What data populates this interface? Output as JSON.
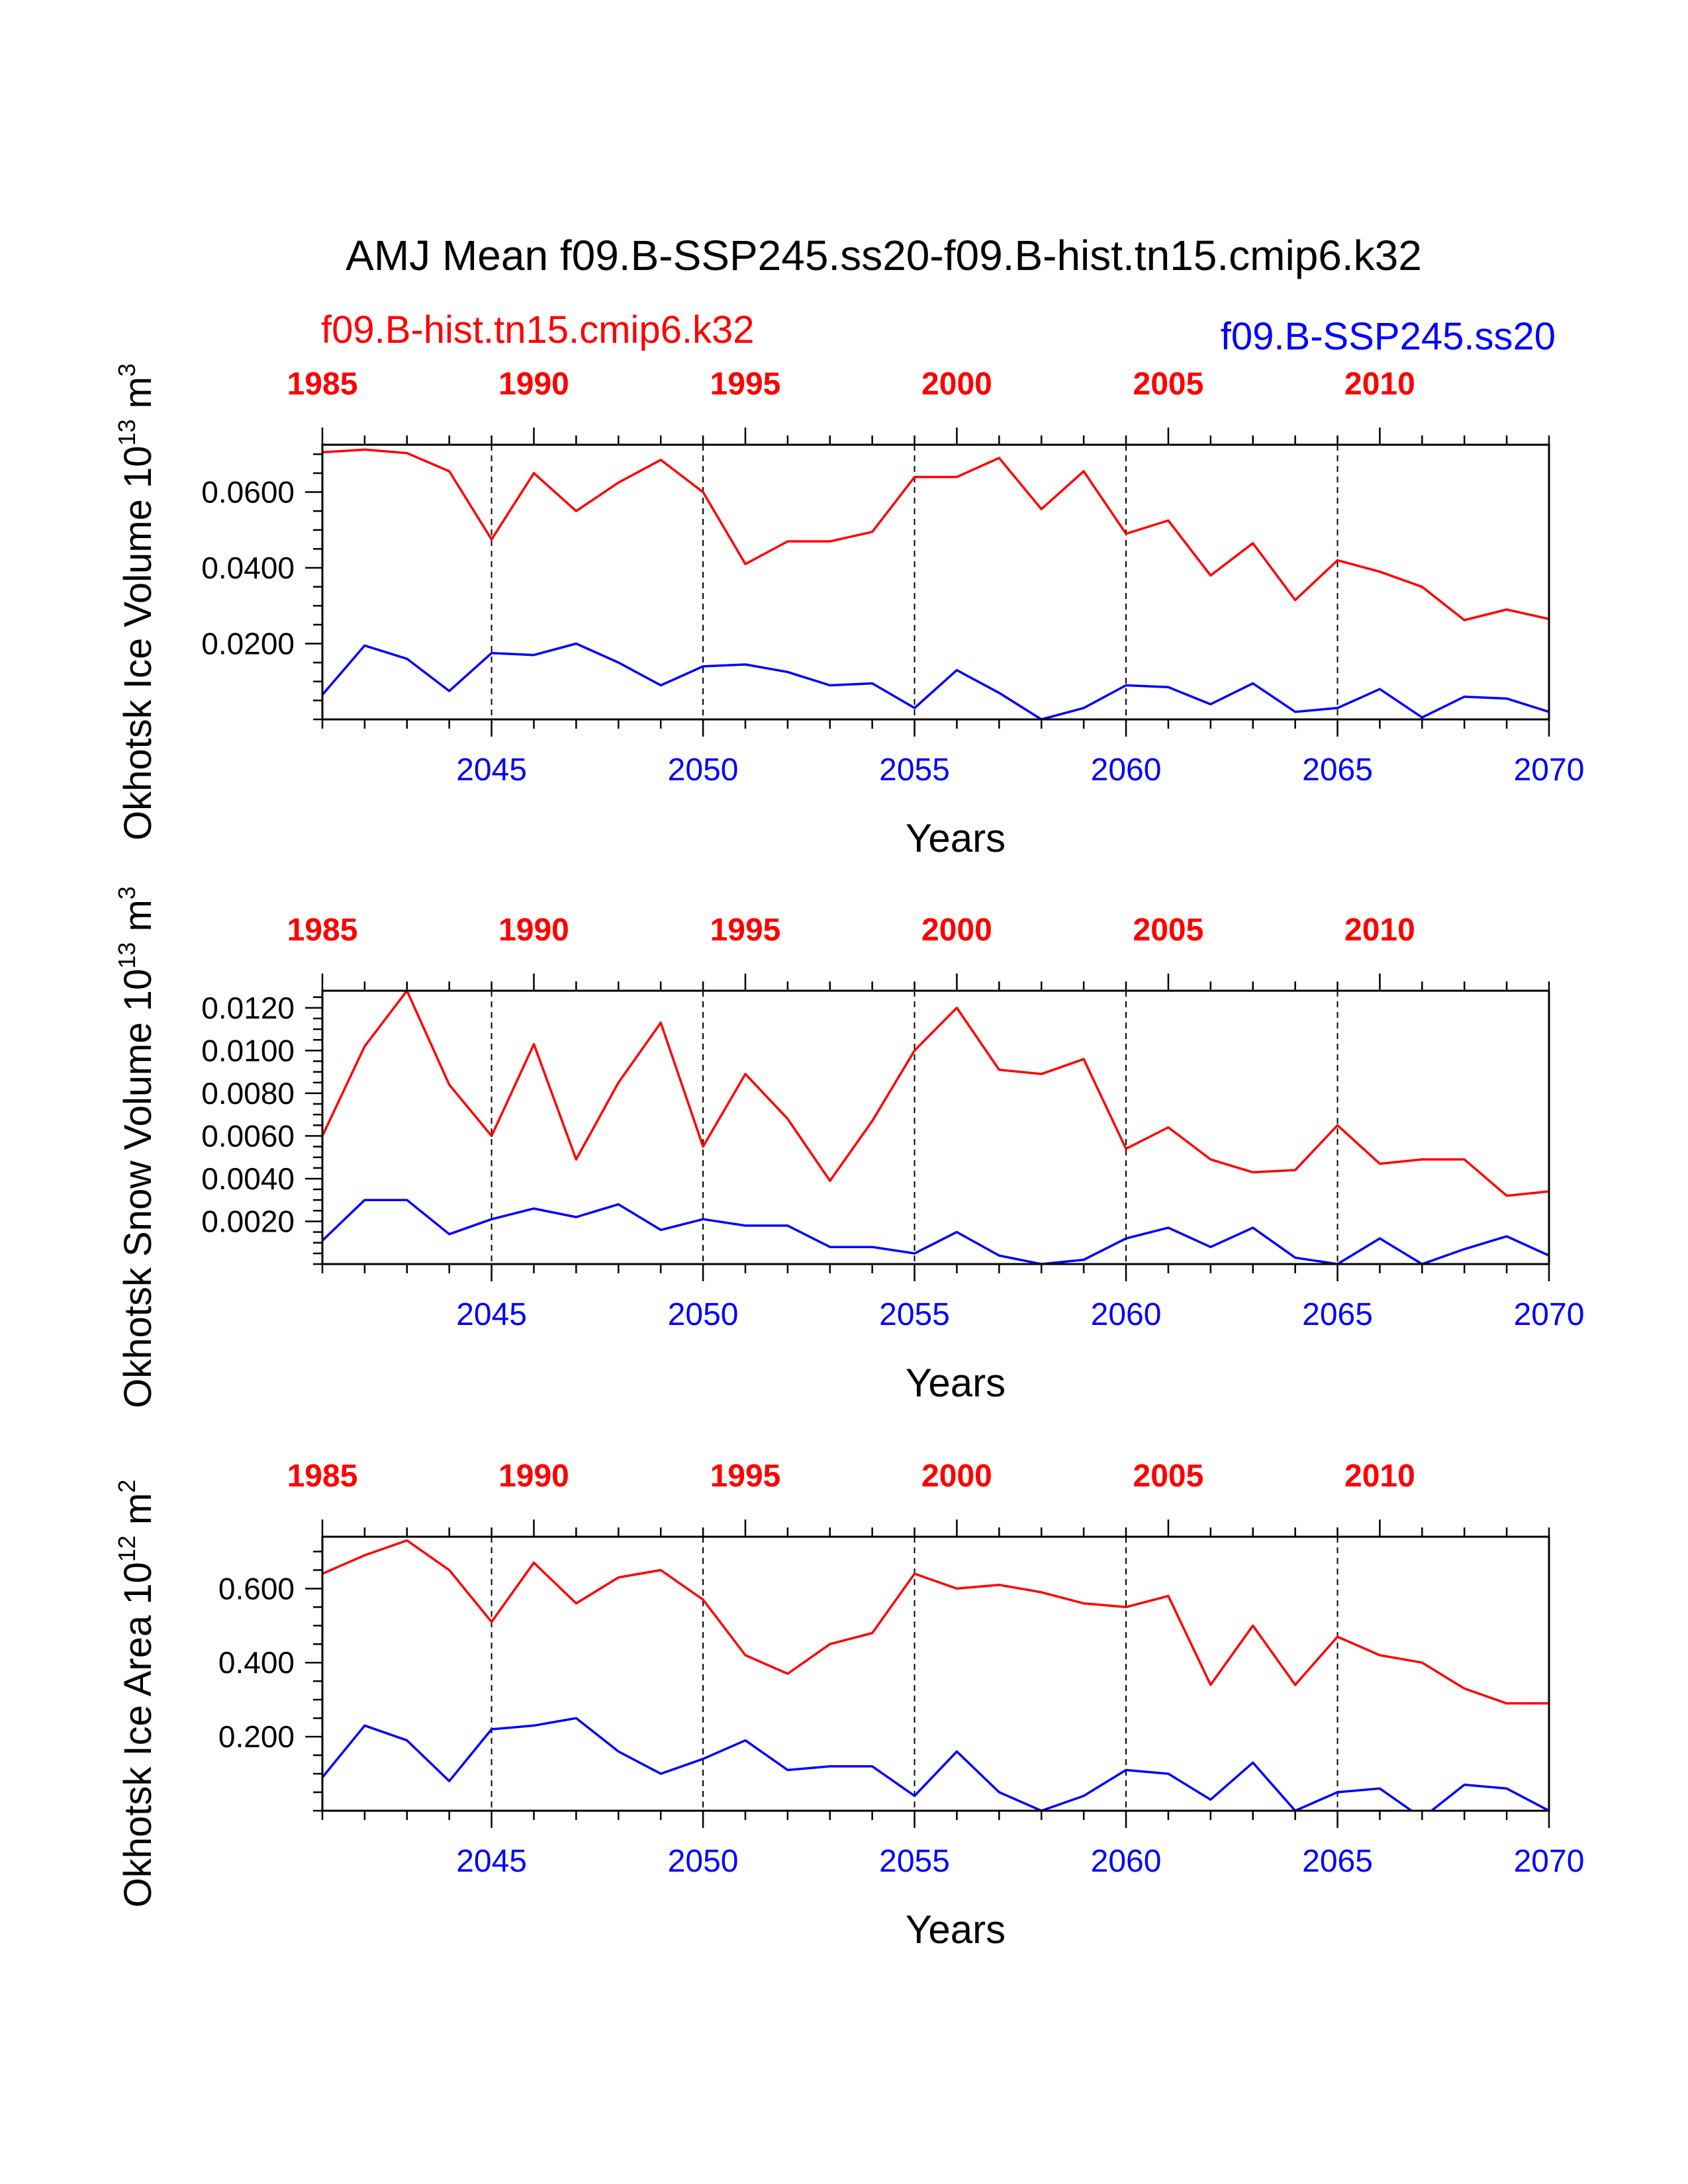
{
  "page": {
    "title": "AMJ Mean f09.B-SSP245.ss20-f09.B-hist.tn15.cmip6.k32",
    "legend_red": "f09.B-hist.tn15.cmip6.k32",
    "legend_blue": "f09.B-SSP245.ss20"
  },
  "colors": {
    "hist": "#ff0000",
    "ssp": "#0000ff",
    "axis": "#000000"
  },
  "chart_data": [
    {
      "type": "line",
      "ylabel_main": "Okhotsk Ice Volume 10",
      "ylabel_exp": "13",
      "ylabel_unit": " m",
      "ylabel_unit_exp": "3",
      "xlabel": "Years",
      "ylim": [
        0.0,
        0.0725
      ],
      "yticks": [
        0.02,
        0.04,
        0.06
      ],
      "ytick_labels": [
        "0.0200",
        "0.0400",
        "0.0600"
      ],
      "y_minor_step": 0.005,
      "x_bottom": {
        "range": [
          2041,
          2070
        ],
        "ticks": [
          2045,
          2050,
          2055,
          2060,
          2065,
          2070
        ],
        "labels": [
          "2045",
          "2050",
          "2055",
          "2060",
          "2065",
          "2070"
        ]
      },
      "x_top": {
        "range": [
          1985,
          2014
        ],
        "ticks": [
          1985,
          1990,
          1995,
          2000,
          2005,
          2010
        ],
        "labels": [
          "1985",
          "1990",
          "1995",
          "2000",
          "2005",
          "2010"
        ]
      },
      "vlines": [
        2045,
        2050,
        2055,
        2060,
        2065
      ],
      "series": [
        {
          "name": "f09.B-hist.tn15.cmip6.k32",
          "color": "#ff0000",
          "x": [
            1985,
            1986,
            1987,
            1988,
            1989,
            1990,
            1991,
            1992,
            1993,
            1994,
            1995,
            1996,
            1997,
            1998,
            1999,
            2000,
            2001,
            2002,
            2003,
            2004,
            2005,
            2006,
            2007,
            2008,
            2009,
            2010,
            2011,
            2012,
            2013,
            2014
          ],
          "values": [
            0.0705,
            0.0712,
            0.0703,
            0.0655,
            0.0475,
            0.065,
            0.055,
            0.0625,
            0.0685,
            0.06,
            0.041,
            0.047,
            0.047,
            0.0495,
            0.064,
            0.064,
            0.069,
            0.0555,
            0.0655,
            0.049,
            0.0525,
            0.038,
            0.0465,
            0.0315,
            0.042,
            0.039,
            0.035,
            0.0262,
            0.029,
            0.0265
          ]
        },
        {
          "name": "f09.B-SSP245.ss20",
          "color": "#0000ff",
          "x": [
            2041,
            2042,
            2043,
            2044,
            2045,
            2046,
            2047,
            2048,
            2049,
            2050,
            2051,
            2052,
            2053,
            2054,
            2055,
            2056,
            2057,
            2058,
            2059,
            2060,
            2061,
            2062,
            2063,
            2064,
            2065,
            2066,
            2067,
            2068,
            2069,
            2070
          ],
          "values": [
            0.0065,
            0.0195,
            0.016,
            0.0075,
            0.0175,
            0.017,
            0.02,
            0.015,
            0.009,
            0.014,
            0.0145,
            0.0125,
            0.009,
            0.0095,
            0.003,
            0.013,
            0.007,
            0.0,
            0.003,
            0.009,
            0.0085,
            0.004,
            0.0095,
            0.002,
            0.003,
            0.008,
            0.0005,
            0.006,
            0.0055,
            0.002
          ]
        }
      ]
    },
    {
      "type": "line",
      "ylabel_main": "Okhotsk Snow Volume 10",
      "ylabel_exp": "13",
      "ylabel_unit": " m",
      "ylabel_unit_exp": "3",
      "xlabel": "Years",
      "ylim": [
        0.0,
        0.0128
      ],
      "yticks": [
        0.002,
        0.004,
        0.006,
        0.008,
        0.01,
        0.012
      ],
      "ytick_labels": [
        "0.0020",
        "0.0040",
        "0.0060",
        "0.0080",
        "0.0100",
        "0.0120"
      ],
      "y_minor_step": 0.0005,
      "x_bottom": {
        "range": [
          2041,
          2070
        ],
        "ticks": [
          2045,
          2050,
          2055,
          2060,
          2065,
          2070
        ],
        "labels": [
          "2045",
          "2050",
          "2055",
          "2060",
          "2065",
          "2070"
        ]
      },
      "x_top": {
        "range": [
          1985,
          2014
        ],
        "ticks": [
          1985,
          1990,
          1995,
          2000,
          2005,
          2010
        ],
        "labels": [
          "1985",
          "1990",
          "1995",
          "2000",
          "2005",
          "2010"
        ]
      },
      "vlines": [
        2045,
        2050,
        2055,
        2060,
        2065
      ],
      "series": [
        {
          "name": "f09.B-hist.tn15.cmip6.k32",
          "color": "#ff0000",
          "x": [
            1985,
            1986,
            1987,
            1988,
            1989,
            1990,
            1991,
            1992,
            1993,
            1994,
            1995,
            1996,
            1997,
            1998,
            1999,
            2000,
            2001,
            2002,
            2003,
            2004,
            2005,
            2006,
            2007,
            2008,
            2009,
            2010,
            2011,
            2012,
            2013,
            2014
          ],
          "values": [
            0.006,
            0.0102,
            0.0128,
            0.0084,
            0.006,
            0.0103,
            0.0049,
            0.0085,
            0.0113,
            0.0055,
            0.0089,
            0.0068,
            0.0039,
            0.0067,
            0.01,
            0.012,
            0.0091,
            0.0089,
            0.0096,
            0.0054,
            0.0064,
            0.0049,
            0.0043,
            0.0044,
            0.0065,
            0.0047,
            0.0049,
            0.0049,
            0.0032,
            0.0034
          ]
        },
        {
          "name": "f09.B-SSP245.ss20",
          "color": "#0000ff",
          "x": [
            2041,
            2042,
            2043,
            2044,
            2045,
            2046,
            2047,
            2048,
            2049,
            2050,
            2051,
            2052,
            2053,
            2054,
            2055,
            2056,
            2057,
            2058,
            2059,
            2060,
            2061,
            2062,
            2063,
            2064,
            2065,
            2066,
            2067,
            2068,
            2069,
            2070
          ],
          "values": [
            0.0011,
            0.003,
            0.003,
            0.0014,
            0.0021,
            0.0026,
            0.0022,
            0.0028,
            0.0016,
            0.0021,
            0.0018,
            0.0018,
            0.0008,
            0.0008,
            0.0005,
            0.0015,
            0.0004,
            0.0,
            0.0002,
            0.0012,
            0.0017,
            0.0008,
            0.0017,
            0.0003,
            0.0,
            0.0012,
            0.0,
            0.0007,
            0.0013,
            0.0004
          ]
        }
      ]
    },
    {
      "type": "line",
      "ylabel_main": "Okhotsk Ice Area 10",
      "ylabel_exp": "12",
      "ylabel_unit": " m",
      "ylabel_unit_exp": "2",
      "xlabel": "Years",
      "ylim": [
        0.0,
        0.74
      ],
      "yticks": [
        0.2,
        0.4,
        0.6
      ],
      "ytick_labels": [
        "0.200",
        "0.400",
        "0.600"
      ],
      "y_minor_step": 0.05,
      "x_bottom": {
        "range": [
          2041,
          2070
        ],
        "ticks": [
          2045,
          2050,
          2055,
          2060,
          2065,
          2070
        ],
        "labels": [
          "2045",
          "2050",
          "2055",
          "2060",
          "2065",
          "2070"
        ]
      },
      "x_top": {
        "range": [
          1985,
          2014
        ],
        "ticks": [
          1985,
          1990,
          1995,
          2000,
          2005,
          2010
        ],
        "labels": [
          "1985",
          "1990",
          "1995",
          "2000",
          "2005",
          "2010"
        ]
      },
      "vlines": [
        2045,
        2050,
        2055,
        2060,
        2065
      ],
      "series": [
        {
          "name": "f09.B-hist.tn15.cmip6.k32",
          "color": "#ff0000",
          "x": [
            1985,
            1986,
            1987,
            1988,
            1989,
            1990,
            1991,
            1992,
            1993,
            1994,
            1995,
            1996,
            1997,
            1998,
            1999,
            2000,
            2001,
            2002,
            2003,
            2004,
            2005,
            2006,
            2007,
            2008,
            2009,
            2010,
            2011,
            2012,
            2013,
            2014
          ],
          "values": [
            0.64,
            0.69,
            0.73,
            0.65,
            0.51,
            0.67,
            0.56,
            0.63,
            0.65,
            0.57,
            0.42,
            0.37,
            0.45,
            0.48,
            0.64,
            0.6,
            0.61,
            0.59,
            0.56,
            0.55,
            0.58,
            0.34,
            0.5,
            0.34,
            0.47,
            0.42,
            0.4,
            0.33,
            0.29,
            0.29
          ]
        },
        {
          "name": "f09.B-SSP245.ss20",
          "color": "#0000ff",
          "x": [
            2041,
            2042,
            2043,
            2044,
            2045,
            2046,
            2047,
            2048,
            2049,
            2050,
            2051,
            2052,
            2053,
            2054,
            2055,
            2056,
            2057,
            2058,
            2059,
            2060,
            2061,
            2062,
            2063,
            2064,
            2065,
            2066,
            2067,
            2068,
            2069,
            2070
          ],
          "values": [
            0.09,
            0.23,
            0.19,
            0.08,
            0.22,
            0.23,
            0.25,
            0.16,
            0.1,
            0.14,
            0.19,
            0.11,
            0.12,
            0.12,
            0.04,
            0.16,
            0.05,
            0.0,
            0.04,
            0.11,
            0.1,
            0.03,
            0.13,
            0.0,
            0.05,
            0.06,
            -0.02,
            0.07,
            0.06,
            0.0
          ]
        }
      ]
    }
  ]
}
